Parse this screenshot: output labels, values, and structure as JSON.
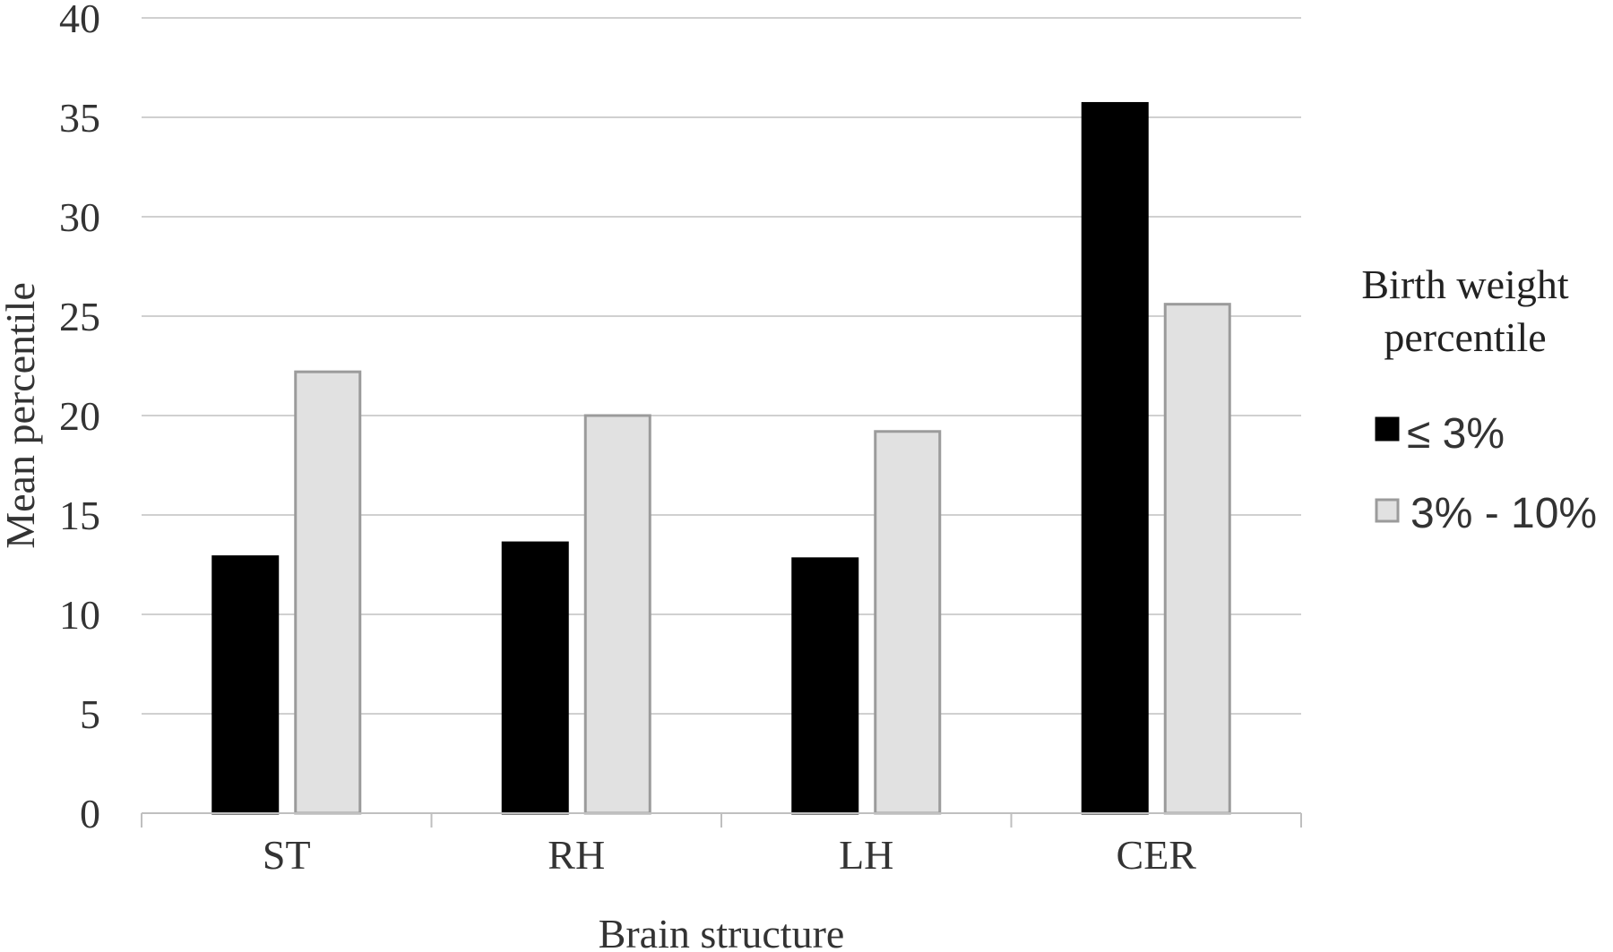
{
  "chart_data": {
    "type": "bar",
    "categories": [
      "ST",
      "RH",
      "LH",
      "CER"
    ],
    "series": [
      {
        "name": "≤ 3%",
        "values": [
          12.9,
          13.6,
          12.8,
          35.7
        ],
        "color": "#000000",
        "stroke": "#000000"
      },
      {
        "name": "3% - 10%",
        "values": [
          22.2,
          20.0,
          19.2,
          25.6
        ],
        "color": "#e1e1e1",
        "stroke": "#9b9b9b"
      }
    ],
    "xlabel": "Brain structure",
    "ylabel": "Mean percentile",
    "ylim": [
      0,
      40
    ],
    "yticks": [
      0,
      5,
      10,
      15,
      20,
      25,
      30,
      35,
      40
    ],
    "grid": true,
    "legend": {
      "title_line1": "Birth weight",
      "title_line2": "percentile",
      "position": "right"
    }
  }
}
